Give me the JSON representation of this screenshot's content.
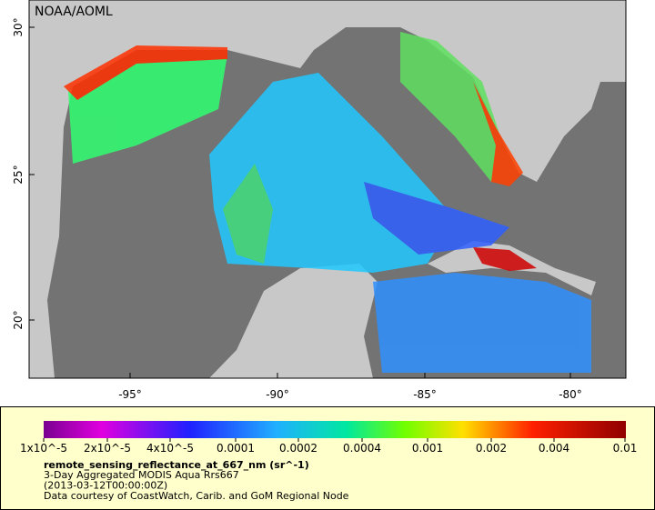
{
  "header": {
    "title": "NOAA/AOML"
  },
  "map": {
    "lat_labels": [
      "30°",
      "25°",
      "20°"
    ],
    "lon_labels": [
      "-95°",
      "-90°",
      "-85°",
      "-80°"
    ]
  },
  "legend": {
    "ticks": [
      "1x10^-5",
      "2x10^-5",
      "4x10^-5",
      "0.0001",
      "0.0002",
      "0.0004",
      "0.001",
      "0.002",
      "0.004",
      "0.01"
    ],
    "variable": "remote_sensing_reflectance_at_667_nm (sr^-1)",
    "lines": [
      "3-Day Aggregated MODIS Aqua Rrs667",
      "(2013-03-12T00:00:00Z)",
      "Data courtesy of CoastWatch, Carib. and GoM Regional Node"
    ]
  }
}
